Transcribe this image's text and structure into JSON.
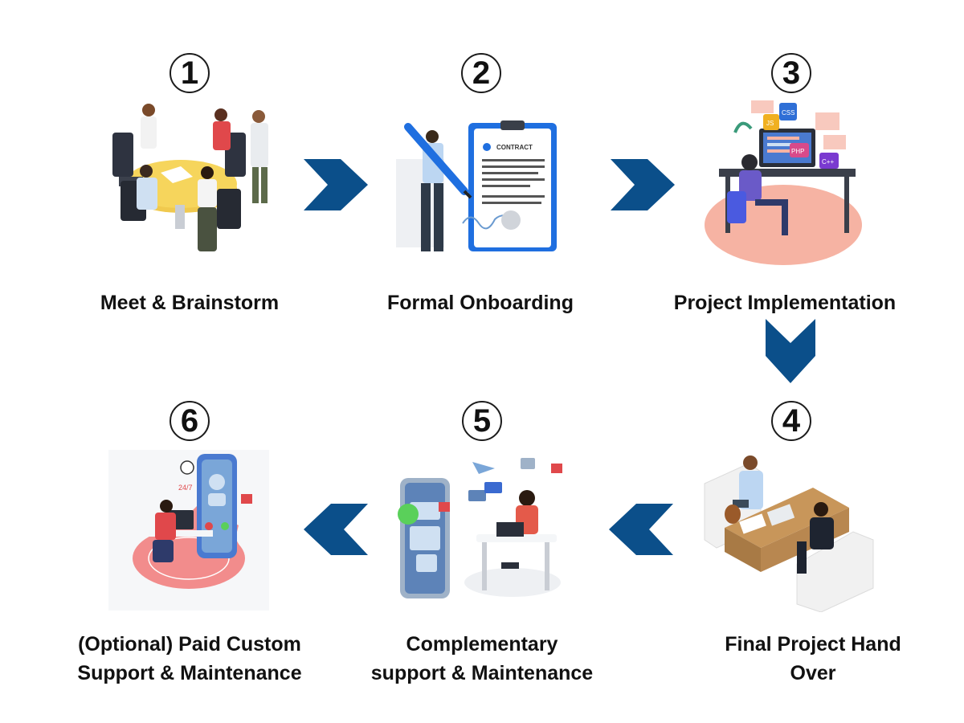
{
  "colors": {
    "arrow": "#0b4f8a",
    "text": "#111111"
  },
  "steps": [
    {
      "number": "1",
      "label_lines": [
        "Meet & Brainstorm"
      ],
      "icon": "meeting-illustration"
    },
    {
      "number": "2",
      "label_lines": [
        "Formal Onboarding"
      ],
      "icon": "contract-illustration"
    },
    {
      "number": "3",
      "label_lines": [
        "Project Implementation"
      ],
      "icon": "developer-illustration"
    },
    {
      "number": "4",
      "label_lines": [
        "Final Project Hand",
        "Over"
      ],
      "icon": "handover-illustration"
    },
    {
      "number": "5",
      "label_lines": [
        "Complementary",
        "support & Maintenance"
      ],
      "icon": "support-illustration"
    },
    {
      "number": "6",
      "label_lines": [
        "(Optional) Paid Custom",
        "Support & Maintenance"
      ],
      "icon": "paid-support-illustration"
    }
  ],
  "illustration_text": {
    "contract_heading": "CONTRACT",
    "code_tags": [
      "CSS",
      "JS",
      "PHP",
      "C++"
    ],
    "support_hours": "24/7"
  }
}
